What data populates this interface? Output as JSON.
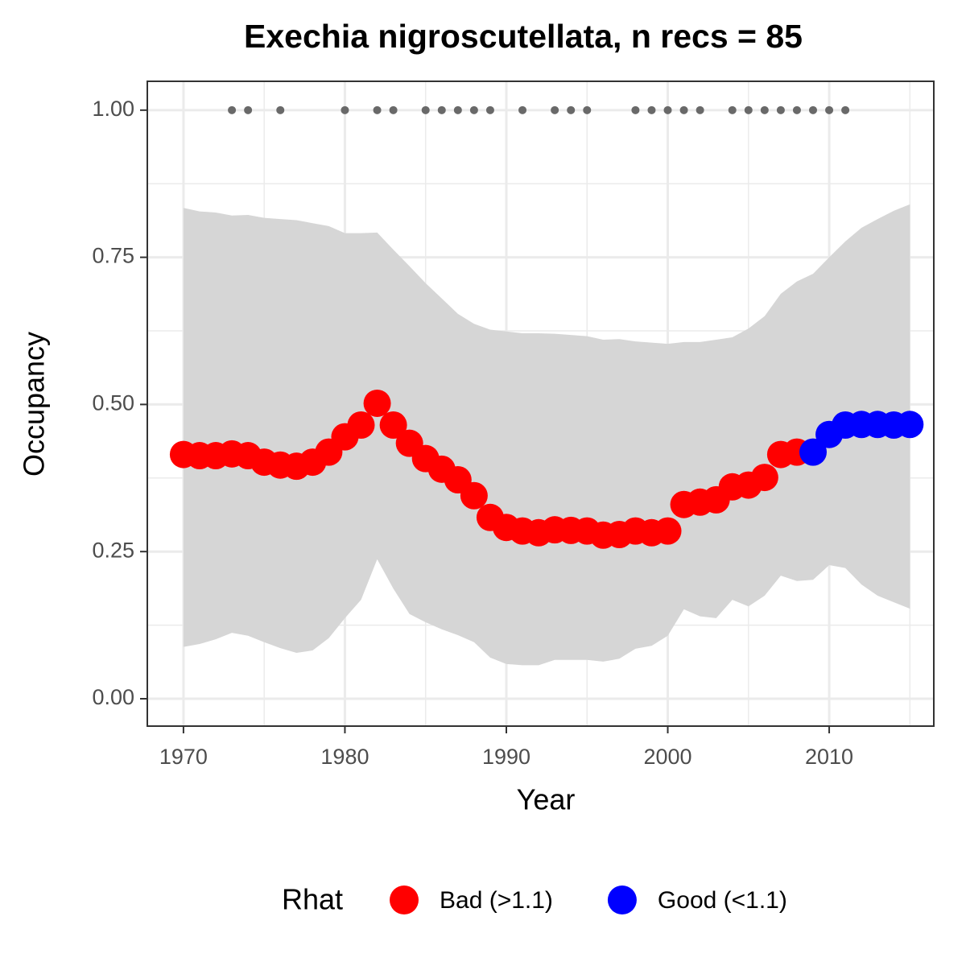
{
  "chart_data": {
    "type": "line",
    "title": "Exechia nigroscutellata, n recs = 85",
    "x_label": "Year",
    "y_label": "Occupancy",
    "legend_title": "Rhat",
    "legend_position": "bottom",
    "grid": true,
    "xlim": [
      1967.76,
      2016.48
    ],
    "ylim": [
      -0.0465,
      1.049
    ],
    "xticks": [
      1970,
      1980,
      1990,
      2000,
      2010
    ],
    "yticks": [
      {
        "value": 0,
        "label": "0.00"
      },
      {
        "value": 0.25,
        "label": "0.25"
      },
      {
        "value": 0.5,
        "label": "0.50"
      },
      {
        "value": 0.75,
        "label": "0.75"
      },
      {
        "value": 1,
        "label": "1.00"
      }
    ],
    "x_minor_grid": [
      1975,
      1985,
      1995,
      2005,
      2015
    ],
    "y_minor_grid": [
      0.125,
      0.375,
      0.625,
      0.875
    ],
    "x": [
      1970,
      1971,
      1972,
      1973,
      1974,
      1975,
      1976,
      1977,
      1978,
      1979,
      1980,
      1981,
      1982,
      1983,
      1984,
      1985,
      1986,
      1987,
      1988,
      1989,
      1990,
      1991,
      1992,
      1993,
      1994,
      1995,
      1996,
      1997,
      1998,
      1999,
      2000,
      2001,
      2002,
      2003,
      2004,
      2005,
      2006,
      2007,
      2008,
      2009,
      2010,
      2011,
      2012,
      2013,
      2014,
      2015
    ],
    "ribbon": {
      "color": "#d6d6d6",
      "upper": [
        0.834,
        0.828,
        0.826,
        0.821,
        0.822,
        0.817,
        0.815,
        0.813,
        0.808,
        0.803,
        0.791,
        0.791,
        0.792,
        0.763,
        0.735,
        0.706,
        0.68,
        0.654,
        0.637,
        0.627,
        0.624,
        0.621,
        0.621,
        0.62,
        0.618,
        0.616,
        0.61,
        0.611,
        0.607,
        0.605,
        0.603,
        0.606,
        0.606,
        0.61,
        0.614,
        0.629,
        0.65,
        0.688,
        0.709,
        0.722,
        0.75,
        0.777,
        0.8,
        0.815,
        0.829,
        0.84
      ],
      "lower": [
        0.088,
        0.093,
        0.101,
        0.112,
        0.107,
        0.096,
        0.086,
        0.078,
        0.082,
        0.103,
        0.137,
        0.168,
        0.237,
        0.187,
        0.144,
        0.13,
        0.118,
        0.108,
        0.096,
        0.07,
        0.059,
        0.057,
        0.057,
        0.066,
        0.066,
        0.066,
        0.063,
        0.068,
        0.085,
        0.09,
        0.107,
        0.152,
        0.14,
        0.137,
        0.168,
        0.157,
        0.175,
        0.209,
        0.2,
        0.202,
        0.227,
        0.222,
        0.194,
        0.175,
        0.164,
        0.153
      ]
    },
    "series": [
      {
        "name": "Bad (>1.1)",
        "color": "#ff0000",
        "values": [
          0.415,
          0.413,
          0.413,
          0.416,
          0.413,
          0.402,
          0.397,
          0.395,
          0.402,
          0.419,
          0.445,
          0.465,
          0.502,
          0.465,
          0.434,
          0.408,
          0.39,
          0.372,
          0.345,
          0.308,
          0.291,
          0.285,
          0.282,
          0.287,
          0.286,
          0.285,
          0.278,
          0.279,
          0.285,
          0.282,
          0.285,
          0.33,
          0.334,
          0.338,
          0.36,
          0.363,
          0.376,
          0.415,
          0.419,
          null,
          null,
          null,
          null,
          null,
          null,
          null
        ]
      },
      {
        "name": "Good (<1.1)",
        "color": "#0000ff",
        "values": [
          null,
          null,
          null,
          null,
          null,
          null,
          null,
          null,
          null,
          null,
          null,
          null,
          null,
          null,
          null,
          null,
          null,
          null,
          null,
          null,
          null,
          null,
          null,
          null,
          null,
          null,
          null,
          null,
          null,
          null,
          null,
          null,
          null,
          null,
          null,
          null,
          null,
          null,
          null,
          0.419,
          0.449,
          0.465,
          0.466,
          0.466,
          0.465,
          0.466
        ]
      }
    ],
    "records": {
      "color": "#696969",
      "x": [
        1973,
        1974,
        1976,
        1980,
        1982,
        1983,
        1985,
        1986,
        1987,
        1988,
        1989,
        1991,
        1993,
        1994,
        1995,
        1998,
        1999,
        2000,
        2001,
        2002,
        2004,
        2005,
        2006,
        2007,
        2008,
        2009,
        2010,
        2011
      ],
      "y": [
        1,
        1,
        1,
        1,
        1,
        1,
        1,
        1,
        1,
        1,
        1,
        1,
        1,
        1,
        1,
        1,
        1,
        1,
        1,
        1,
        1,
        1,
        1,
        1,
        1,
        1,
        1,
        1
      ]
    }
  }
}
